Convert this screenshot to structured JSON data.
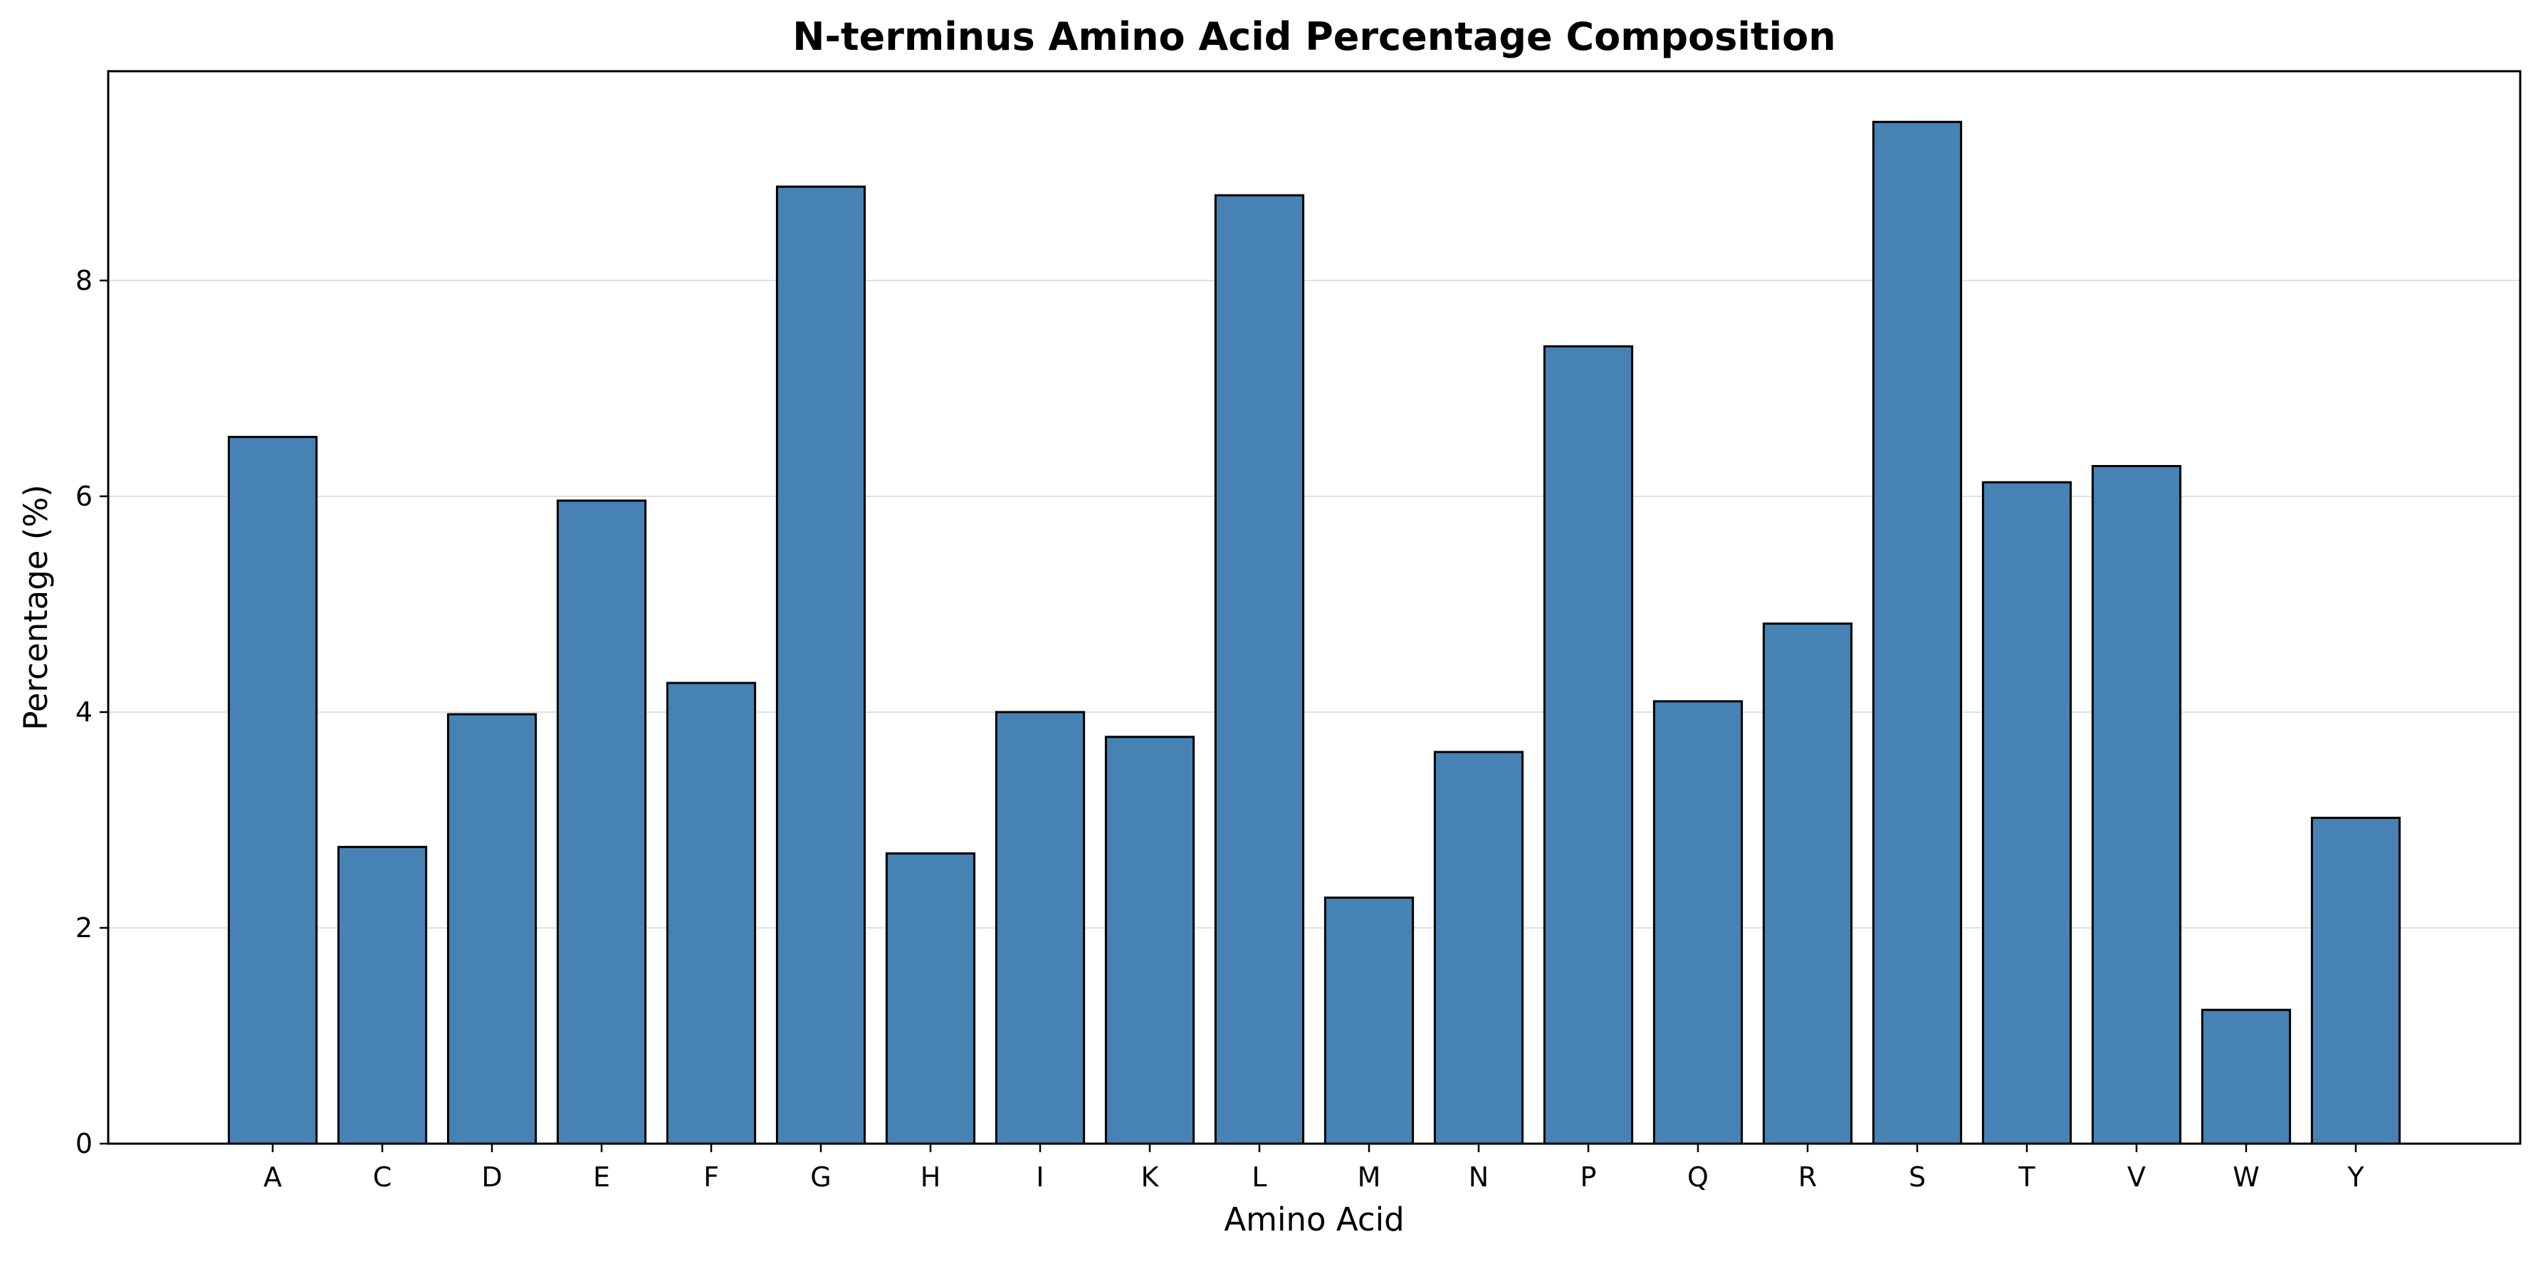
{
  "chart_data": {
    "type": "bar",
    "title": "N-terminus Amino Acid Percentage Composition",
    "xlabel": "Amino Acid",
    "ylabel": "Percentage (%)",
    "categories": [
      "A",
      "C",
      "D",
      "E",
      "F",
      "G",
      "H",
      "I",
      "K",
      "L",
      "M",
      "N",
      "P",
      "Q",
      "R",
      "S",
      "T",
      "V",
      "W",
      "Y"
    ],
    "values": [
      6.55,
      2.75,
      3.98,
      5.96,
      4.27,
      8.87,
      2.69,
      4.0,
      3.77,
      8.79,
      2.28,
      3.63,
      7.39,
      4.1,
      4.82,
      9.47,
      6.13,
      6.28,
      1.24,
      3.02
    ],
    "ylim": [
      0,
      9.94
    ],
    "yticks": [
      0,
      2,
      4,
      6,
      8
    ],
    "grid": "horizontal",
    "bar_color": "#4682b4",
    "edge_color": "#000000",
    "grid_color": "#e0e0e0"
  }
}
